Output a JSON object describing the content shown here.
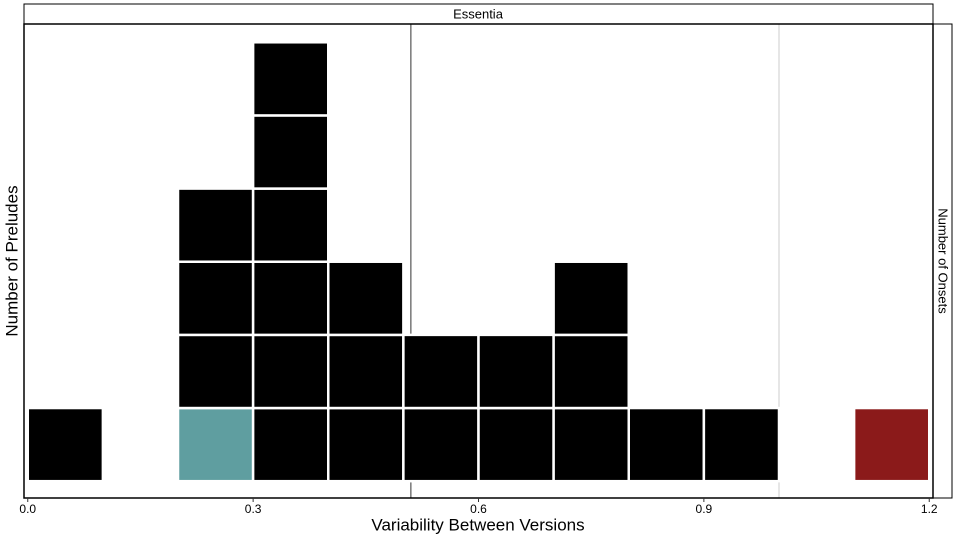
{
  "chart_data": {
    "type": "histogram",
    "strip_title": "Essentia",
    "right_strip_title": "Number of Onsets",
    "x_label": "Variability Between Versions",
    "y_label": "Number of Preludes",
    "bins": [
      0,
      0.1,
      0.2,
      0.3,
      0.4,
      0.5,
      0.6,
      0.7,
      0.8,
      0.9,
      1.0,
      1.1,
      1.2
    ],
    "counts": [
      1,
      0,
      4,
      6,
      3,
      2,
      2,
      3,
      1,
      1,
      0,
      1
    ],
    "color": "#000000",
    "bottom_colors": [
      "#000000",
      "#000000",
      "#5f9ea0",
      "#000000",
      "#000000",
      "#000000",
      "#000000",
      "#000000",
      "#000000",
      "#000000",
      "#000000",
      "#8b1a1a"
    ],
    "vlines": [
      {
        "value": 0.51,
        "color": "#333333"
      },
      {
        "value": 1.0,
        "color": "#cccccc"
      }
    ],
    "xlim": [
      -0.005,
      1.205
    ],
    "xticks": [
      {
        "value": 0,
        "label": "0.0"
      },
      0.3,
      0.6,
      0.9,
      {
        "value": 1.2,
        "label": "1.2"
      }
    ],
    "ylim": [
      -0.23,
      6.25
    ]
  }
}
